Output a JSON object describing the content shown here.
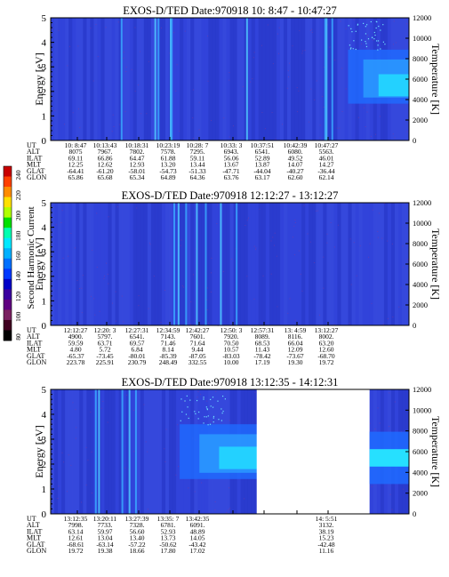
{
  "colorbar": {
    "label": "Second Harmonic Current",
    "ticks": [
      "240",
      "220",
      "200",
      "180",
      "160",
      "140",
      "120",
      "100",
      "80"
    ],
    "colors": [
      "#c80000",
      "#ff4000",
      "#ff8c00",
      "#ffe000",
      "#b0ff00",
      "#00e000",
      "#00ffb0",
      "#00e8ff",
      "#00b0ff",
      "#0070ff",
      "#0038ff",
      "#0000c8",
      "#3a00a0",
      "#600080",
      "#7a2060",
      "#400020",
      "#000000"
    ]
  },
  "chart_data": [
    {
      "type": "heatmap",
      "title": "EXOS-D/TED   Date:970918  10: 8:47 - 10:47:27",
      "ylabel": "Energy [eV]",
      "ylabel_right": "Temperature [K]",
      "ylim": [
        0,
        5
      ],
      "ylim_right": [
        0,
        12000
      ],
      "y_ticks": [
        "0",
        "1",
        "2",
        "3",
        "4",
        "5"
      ],
      "y_ticks_right": [
        "0",
        "2000",
        "4000",
        "6000",
        "8000",
        "10000",
        "12000"
      ],
      "gap": null,
      "streaks": [
        0.198,
        0.292,
        0.301,
        0.335,
        0.338,
        0.548,
        0.766,
        0.77,
        0.786
      ],
      "patch": {
        "x0": 0.83,
        "x1": 1.0,
        "ymin": 1.5,
        "ymax": 3.7
      },
      "orbit_table": {
        "row_labels": [
          "UT",
          "ALT",
          "ILAT",
          "MLT",
          "GLAT",
          "GLON"
        ],
        "columns": [
          [
            "10: 8:47",
            "8075",
            "69.11",
            "12.25",
            "-64.41",
            "65.86"
          ],
          [
            "10:13:43",
            "7967.",
            "66.86",
            "12.62",
            "-61.20",
            "65.68"
          ],
          [
            "10:18:31",
            "7802.",
            "64.47",
            "12.93",
            "-58.01",
            "65.34"
          ],
          [
            "10:23:19",
            "7578.",
            "61.88",
            "13.20",
            "-54.73",
            "64.89"
          ],
          [
            "10:28: 7",
            "7295.",
            "59.11",
            "13.44",
            "-51.33",
            "64.36"
          ],
          [
            "10:33: 3",
            "6943.",
            "56.06",
            "13.67",
            "-47.71",
            "63.76"
          ],
          [
            "10:37:51",
            "6541.",
            "52.89",
            "13.87",
            "-44.04",
            "63.17"
          ],
          [
            "10:42:39",
            "6080.",
            "49.52",
            "14.07",
            "-40.27",
            "62.60"
          ],
          [
            "10:47:27",
            "5563.",
            "46.01",
            "14.27",
            "-36.44",
            "62.14"
          ]
        ]
      }
    },
    {
      "type": "heatmap",
      "title": "EXOS-D/TED   Date:970918  12:12:27 - 13:12:27",
      "ylabel": "Energy [eV]",
      "ylabel_right": "Temperature [K]",
      "ylim": [
        0,
        5
      ],
      "ylim_right": [
        0,
        12000
      ],
      "y_ticks": [
        "0",
        "1",
        "2",
        "3",
        "4",
        "5"
      ],
      "y_ticks_right": [
        "0",
        "2000",
        "4000",
        "6000",
        "8000",
        "10000",
        "12000"
      ],
      "gap": null,
      "streaks": [
        0.345,
        0.357,
        0.378,
        0.408,
        0.433,
        0.475,
        0.519
      ],
      "patch": null,
      "orbit_table": {
        "row_labels": [
          "UT",
          "ALT",
          "ILAT",
          "MLT",
          "GLAT",
          "GLON"
        ],
        "columns": [
          [
            "12:12:27",
            "4900.",
            "59.59",
            "4.80",
            "-65.37",
            "223.78"
          ],
          [
            "12:20: 3",
            "5797.",
            "63.71",
            "5.72",
            "-73.45",
            "225.91"
          ],
          [
            "12:27:31",
            "6541.",
            "69.57",
            "6.84",
            "-80.01",
            "230.79"
          ],
          [
            "12:34:59",
            "7143.",
            "71.46",
            "8.14",
            "-85.39",
            "248.49"
          ],
          [
            "12:42:27",
            "7601.",
            "71.64",
            "9.44",
            "-87.05",
            "332.55"
          ],
          [
            "12:50: 3",
            "7920.",
            "70.50",
            "10.57",
            "-83.03",
            "10.00"
          ],
          [
            "12:57:31",
            "8089.",
            "68.53",
            "11.43",
            "-78.42",
            "17.19"
          ],
          [
            "13: 4:59",
            "8116.",
            "66.04",
            "12.09",
            "-73.67",
            "19.30"
          ],
          [
            "13:12:27",
            "8002.",
            "63.20",
            "12.60",
            "-68.70",
            "19.72"
          ]
        ]
      }
    },
    {
      "type": "heatmap",
      "title": "EXOS-D/TED   Date:970918  13:12:35 - 14:12:31",
      "ylabel": "Energy [eV]",
      "ylabel_right": "Temperature [K]",
      "ylim": [
        0,
        5
      ],
      "ylim_right": [
        0,
        12000
      ],
      "y_ticks": [
        "0",
        "1",
        "2",
        "3",
        "4",
        "5"
      ],
      "y_ticks_right": [
        "0",
        "2000",
        "4000",
        "6000",
        "8000",
        "10000",
        "12000"
      ],
      "gap": {
        "from": "13:46",
        "to": "14:08"
      },
      "streaks": [
        0.126,
        0.135,
        0.2,
        0.22,
        0.238
      ],
      "patch": {
        "x0": 0.36,
        "x1": 0.58,
        "ymin": 1.4,
        "ymax": 3.6
      },
      "orbit_table": {
        "row_labels": [
          "UT",
          "ALT",
          "ILAT",
          "MLT",
          "GLAT",
          "GLON"
        ],
        "columns": [
          [
            "13:12:35",
            "7998.",
            "63.14",
            "12.61",
            "-68.61",
            "19.72"
          ],
          [
            "13:20:11",
            "7733.",
            "59.97",
            "13.04",
            "-63.14",
            "19.38"
          ],
          [
            "13:27:39",
            "7328.",
            "56.60",
            "13.40",
            "-57.22",
            "18.66"
          ],
          [
            "13:35: 7",
            "6781.",
            "52.93",
            "13.73",
            "-50.62",
            "17.80"
          ],
          [
            "13:42:35",
            "6091.",
            "48.89",
            "14.05",
            "-43.42",
            "17.02"
          ],
          [
            "",
            "",
            "",
            "",
            "",
            ""
          ],
          [
            "",
            "",
            "",
            "",
            "",
            ""
          ],
          [
            "",
            "",
            "",
            "",
            "",
            ""
          ],
          [
            "14: 5:51",
            "3132.",
            "38.19",
            "15.23",
            "-42.48",
            "11.16"
          ]
        ]
      }
    }
  ]
}
